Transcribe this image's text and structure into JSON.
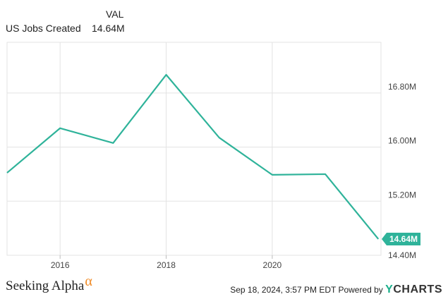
{
  "legend": {
    "column_header": "VAL",
    "series_name": "US Jobs Created",
    "series_value": "14.64M"
  },
  "chart_data": {
    "type": "line",
    "x": [
      2015,
      2016,
      2017,
      2018,
      2019,
      2020,
      2021,
      2022
    ],
    "series": [
      {
        "name": "US Jobs Created",
        "values": [
          15.62,
          16.28,
          16.06,
          17.07,
          16.14,
          15.59,
          15.6,
          14.64
        ],
        "color": "#2fb39a"
      }
    ],
    "xlim": [
      2015,
      2022.05
    ],
    "ylim": [
      14.4,
      17.55
    ],
    "x_ticks": [
      2016,
      2018,
      2020
    ],
    "x_tick_labels": [
      "2016",
      "2018",
      "2020"
    ],
    "y_ticks": [
      15.2,
      16.0,
      16.8
    ],
    "y_tick_labels": [
      "15.20M",
      "16.00M",
      "16.80M"
    ],
    "y_axis_bottom_label": "14.40M",
    "last_value_label": "14.64M",
    "grid": true
  },
  "footer": {
    "brand": "Seeking Alpha",
    "brand_mark": "α",
    "timestamp_text": "Sep 18, 2024, 3:57 PM EDT Powered by",
    "ycharts_y": "Y",
    "ycharts_rest": "CHARTS"
  }
}
